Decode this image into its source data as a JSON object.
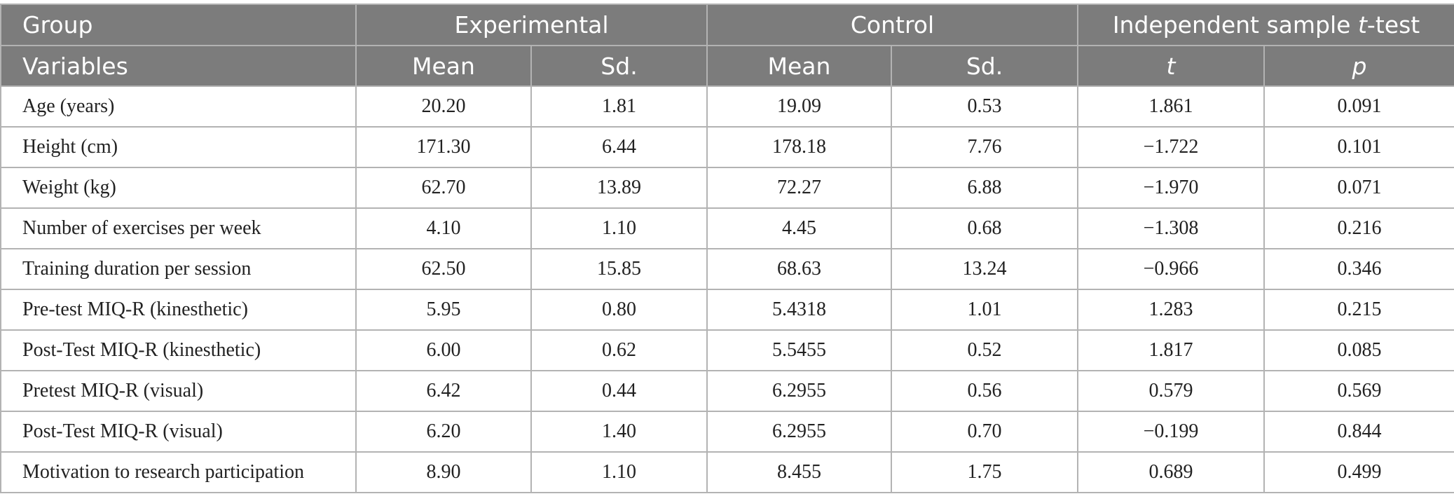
{
  "header": {
    "row1": {
      "group": "Group",
      "experimental": "Experimental",
      "control": "Control",
      "ttest_prefix": "Independent sample ",
      "ttest_italic": "t",
      "ttest_suffix": "-test"
    },
    "row2": {
      "variables": "Variables",
      "exp_mean": "Mean",
      "exp_sd": "Sd.",
      "ctrl_mean": "Mean",
      "ctrl_sd": "Sd.",
      "t": "t",
      "p": "p"
    }
  },
  "rows": [
    {
      "variable": "Age (years)",
      "exp_mean": "20.20",
      "exp_sd": "1.81",
      "ctrl_mean": "19.09",
      "ctrl_sd": "0.53",
      "t": "1.861",
      "p": "0.091"
    },
    {
      "variable": "Height (cm)",
      "exp_mean": "171.30",
      "exp_sd": "6.44",
      "ctrl_mean": "178.18",
      "ctrl_sd": "7.76",
      "t": "−1.722",
      "p": "0.101"
    },
    {
      "variable": "Weight (kg)",
      "exp_mean": "62.70",
      "exp_sd": "13.89",
      "ctrl_mean": "72.27",
      "ctrl_sd": "6.88",
      "t": "−1.970",
      "p": "0.071"
    },
    {
      "variable": "Number of exercises per week",
      "exp_mean": "4.10",
      "exp_sd": "1.10",
      "ctrl_mean": "4.45",
      "ctrl_sd": "0.68",
      "t": "−1.308",
      "p": "0.216"
    },
    {
      "variable": "Training duration per session",
      "exp_mean": "62.50",
      "exp_sd": "15.85",
      "ctrl_mean": "68.63",
      "ctrl_sd": "13.24",
      "t": "−0.966",
      "p": "0.346"
    },
    {
      "variable": "Pre-test MIQ-R (kinesthetic)",
      "exp_mean": "5.95",
      "exp_sd": "0.80",
      "ctrl_mean": "5.4318",
      "ctrl_sd": "1.01",
      "t": "1.283",
      "p": "0.215"
    },
    {
      "variable": "Post-Test MIQ-R (kinesthetic)",
      "exp_mean": "6.00",
      "exp_sd": "0.62",
      "ctrl_mean": "5.5455",
      "ctrl_sd": "0.52",
      "t": "1.817",
      "p": "0.085"
    },
    {
      "variable": "Pretest MIQ-R (visual)",
      "exp_mean": "6.42",
      "exp_sd": "0.44",
      "ctrl_mean": "6.2955",
      "ctrl_sd": "0.56",
      "t": "0.579",
      "p": "0.569"
    },
    {
      "variable": "Post-Test MIQ-R (visual)",
      "exp_mean": "6.20",
      "exp_sd": "1.40",
      "ctrl_mean": "6.2955",
      "ctrl_sd": "0.70",
      "t": "−0.199",
      "p": "0.844"
    },
    {
      "variable": "Motivation to research participation",
      "exp_mean": "8.90",
      "exp_sd": "1.10",
      "ctrl_mean": "8.455",
      "ctrl_sd": "1.75",
      "t": "0.689",
      "p": "0.499"
    }
  ]
}
